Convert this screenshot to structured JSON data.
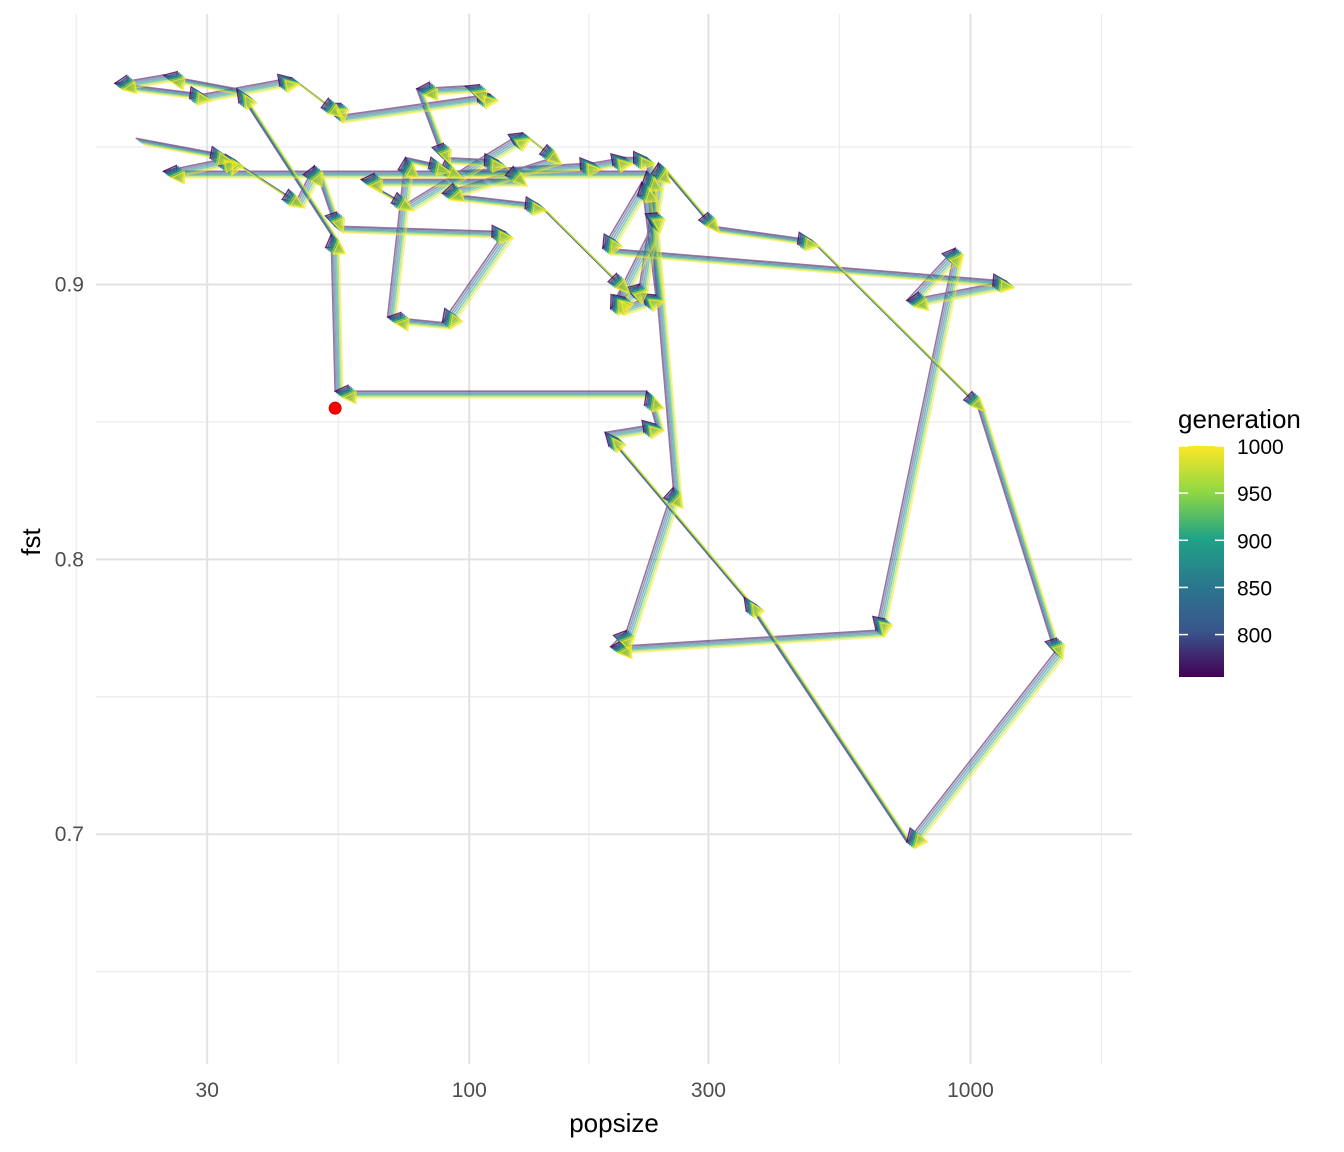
{
  "chart_data": {
    "type": "line",
    "xlabel": "popsize",
    "ylabel": "fst",
    "x_scale": "log10",
    "xlim": [
      18,
      2100
    ],
    "ylim": [
      0.6164,
      0.9984
    ],
    "x_ticks": [
      30,
      100,
      300,
      1000
    ],
    "x_tick_labels": [
      "30",
      "100",
      "300",
      "1000"
    ],
    "y_ticks": [
      0.7,
      0.8,
      0.9
    ],
    "y_tick_labels": [
      "0.7",
      "0.8",
      "0.9"
    ],
    "grid": true,
    "legend": {
      "title": "generation",
      "position": "right",
      "type": "colorbar",
      "range": [
        755,
        1000
      ],
      "ticks": [
        800,
        850,
        900,
        950,
        1000
      ],
      "tick_labels": [
        "800",
        "850",
        "900",
        "950",
        "1000"
      ],
      "palette": "viridis"
    },
    "start_point": {
      "x": 54,
      "y": 0.855,
      "color": "#ff0000"
    },
    "path_x": [
      22,
      33,
      46,
      50,
      55,
      120,
      90,
      70,
      76,
      90,
      95,
      180,
      208,
      230,
      236,
      195,
      223,
      243,
      310,
      490,
      1050,
      1500,
      760,
      360,
      190,
      240,
      230,
      55,
      54,
      35,
      25,
      20,
      30,
      45,
      55,
      55,
      112,
      100,
      80,
      90,
      116,
      128,
      62,
      76,
      130,
      150,
      90,
      140,
      205,
      200,
      240,
      225,
      188,
      1200,
      760,
      950,
      660,
      195,
      210,
      260,
      230,
      25,
      34,
      33
    ],
    "path_y": [
      0.952,
      0.946,
      0.929,
      0.942,
      0.92,
      0.918,
      0.885,
      0.887,
      0.945,
      0.942,
      0.94,
      0.943,
      0.945,
      0.945,
      0.92,
      0.89,
      0.899,
      0.943,
      0.92,
      0.915,
      0.855,
      0.765,
      0.696,
      0.785,
      0.845,
      0.848,
      0.86,
      0.86,
      0.917,
      0.97,
      0.975,
      0.972,
      0.968,
      0.974,
      0.962,
      0.96,
      0.968,
      0.971,
      0.97,
      0.945,
      0.944,
      0.937,
      0.937,
      0.928,
      0.954,
      0.945,
      0.932,
      0.928,
      0.898,
      0.89,
      0.895,
      0.936,
      0.912,
      0.9,
      0.893,
      0.912,
      0.773,
      0.767,
      0.773,
      0.825,
      0.94,
      0.94,
      0.945,
      0.941
    ],
    "series": [
      {
        "generation": 760,
        "color": "#440154"
      },
      {
        "generation": 800,
        "color": "#39568c"
      },
      {
        "generation": 850,
        "color": "#2a788e"
      },
      {
        "generation": 900,
        "color": "#20a386"
      },
      {
        "generation": 950,
        "color": "#8fd744"
      },
      {
        "generation": 1000,
        "color": "#fde725"
      }
    ]
  }
}
